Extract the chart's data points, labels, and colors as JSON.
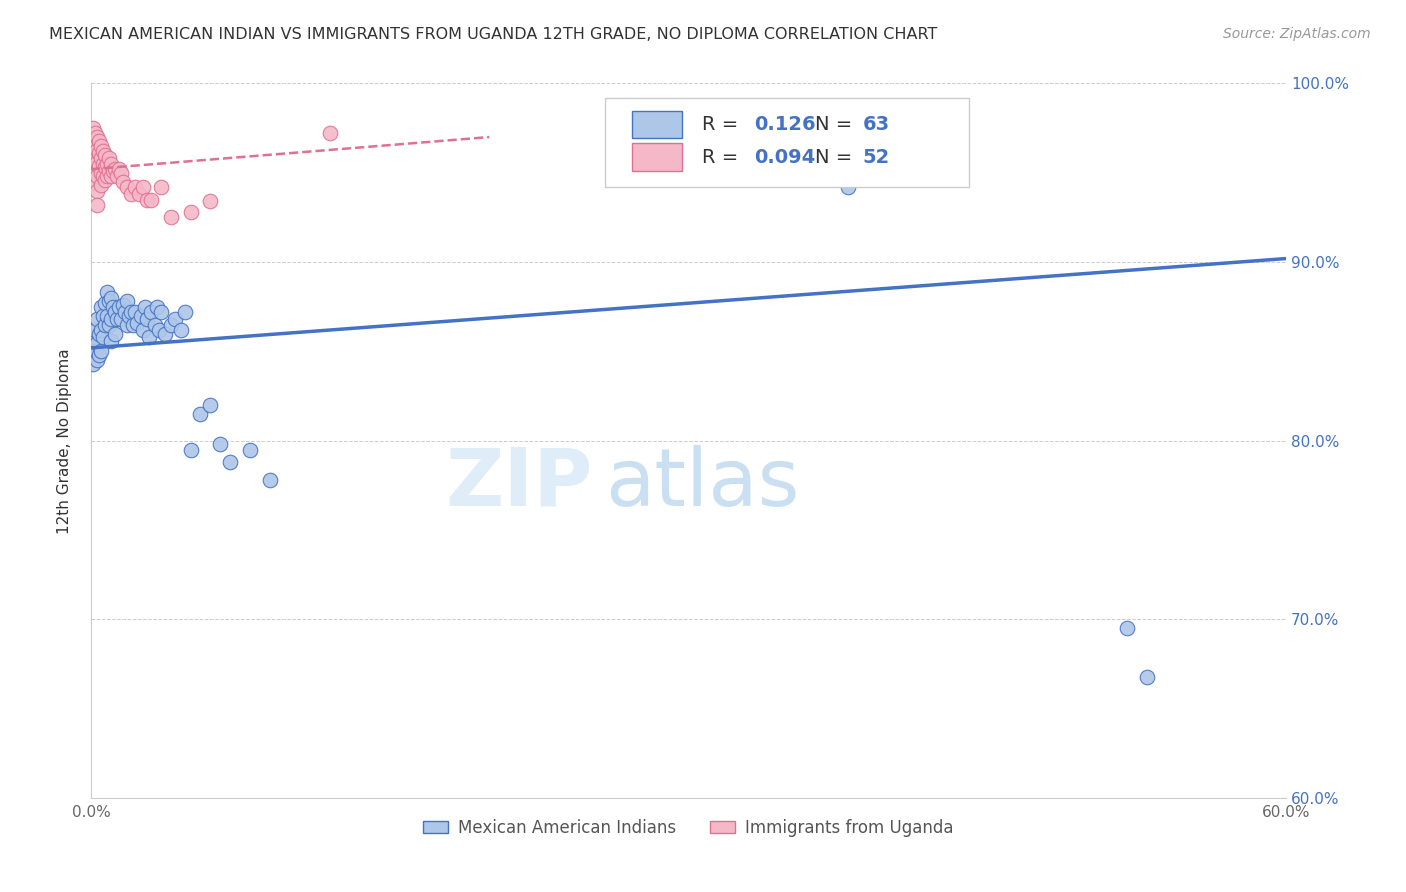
{
  "title": "MEXICAN AMERICAN INDIAN VS IMMIGRANTS FROM UGANDA 12TH GRADE, NO DIPLOMA CORRELATION CHART",
  "source": "Source: ZipAtlas.com",
  "ylabel": "12th Grade, No Diploma",
  "legend_blue_label": "Mexican American Indians",
  "legend_pink_label": "Immigrants from Uganda",
  "r_blue": 0.126,
  "n_blue": 63,
  "r_pink": 0.094,
  "n_pink": 52,
  "xmin": 0.0,
  "xmax": 0.6,
  "ymin": 0.6,
  "ymax": 1.0,
  "xticks": [
    0.0,
    0.1,
    0.2,
    0.3,
    0.4,
    0.5,
    0.6
  ],
  "xtick_labels": [
    "0.0%",
    "",
    "",
    "",
    "",
    "",
    "60.0%"
  ],
  "yticks": [
    0.6,
    0.7,
    0.8,
    0.9,
    1.0
  ],
  "ytick_labels": [
    "60.0%",
    "70.0%",
    "80.0%",
    "90.0%",
    "100.0%"
  ],
  "blue_color": "#aec6e8",
  "pink_color": "#f4b8c8",
  "blue_line_color": "#4472c4",
  "pink_line_color": "#e07090",
  "watermark_zip": "ZIP",
  "watermark_atlas": "atlas",
  "blue_x": [
    0.001,
    0.001,
    0.002,
    0.002,
    0.003,
    0.003,
    0.003,
    0.004,
    0.004,
    0.005,
    0.005,
    0.005,
    0.006,
    0.006,
    0.007,
    0.007,
    0.008,
    0.008,
    0.009,
    0.009,
    0.01,
    0.01,
    0.01,
    0.011,
    0.012,
    0.012,
    0.013,
    0.014,
    0.015,
    0.016,
    0.017,
    0.018,
    0.018,
    0.019,
    0.02,
    0.021,
    0.022,
    0.023,
    0.025,
    0.026,
    0.027,
    0.028,
    0.029,
    0.03,
    0.032,
    0.033,
    0.034,
    0.035,
    0.037,
    0.04,
    0.042,
    0.045,
    0.047,
    0.05,
    0.055,
    0.06,
    0.065,
    0.07,
    0.08,
    0.09,
    0.38,
    0.52,
    0.53
  ],
  "blue_y": [
    0.855,
    0.843,
    0.862,
    0.85,
    0.868,
    0.855,
    0.845,
    0.86,
    0.848,
    0.875,
    0.862,
    0.85,
    0.87,
    0.858,
    0.877,
    0.865,
    0.883,
    0.87,
    0.878,
    0.865,
    0.88,
    0.868,
    0.856,
    0.875,
    0.872,
    0.86,
    0.868,
    0.875,
    0.868,
    0.876,
    0.872,
    0.878,
    0.865,
    0.87,
    0.872,
    0.865,
    0.872,
    0.866,
    0.87,
    0.862,
    0.875,
    0.868,
    0.858,
    0.872,
    0.865,
    0.875,
    0.862,
    0.872,
    0.86,
    0.865,
    0.868,
    0.862,
    0.872,
    0.795,
    0.815,
    0.82,
    0.798,
    0.788,
    0.795,
    0.778,
    0.942,
    0.695,
    0.668
  ],
  "pink_x": [
    0.001,
    0.001,
    0.001,
    0.001,
    0.001,
    0.002,
    0.002,
    0.002,
    0.002,
    0.003,
    0.003,
    0.003,
    0.003,
    0.003,
    0.003,
    0.004,
    0.004,
    0.004,
    0.005,
    0.005,
    0.005,
    0.005,
    0.006,
    0.006,
    0.006,
    0.007,
    0.007,
    0.007,
    0.008,
    0.008,
    0.009,
    0.009,
    0.01,
    0.01,
    0.011,
    0.012,
    0.013,
    0.014,
    0.015,
    0.016,
    0.018,
    0.02,
    0.022,
    0.024,
    0.026,
    0.028,
    0.03,
    0.035,
    0.04,
    0.05,
    0.06,
    0.12
  ],
  "pink_y": [
    0.975,
    0.968,
    0.96,
    0.952,
    0.944,
    0.972,
    0.965,
    0.957,
    0.95,
    0.97,
    0.963,
    0.956,
    0.948,
    0.94,
    0.932,
    0.968,
    0.961,
    0.954,
    0.965,
    0.958,
    0.95,
    0.943,
    0.962,
    0.955,
    0.948,
    0.96,
    0.953,
    0.946,
    0.955,
    0.948,
    0.958,
    0.951,
    0.955,
    0.948,
    0.951,
    0.952,
    0.948,
    0.952,
    0.95,
    0.945,
    0.942,
    0.938,
    0.942,
    0.938,
    0.942,
    0.935,
    0.935,
    0.942,
    0.925,
    0.928,
    0.934,
    0.972
  ]
}
